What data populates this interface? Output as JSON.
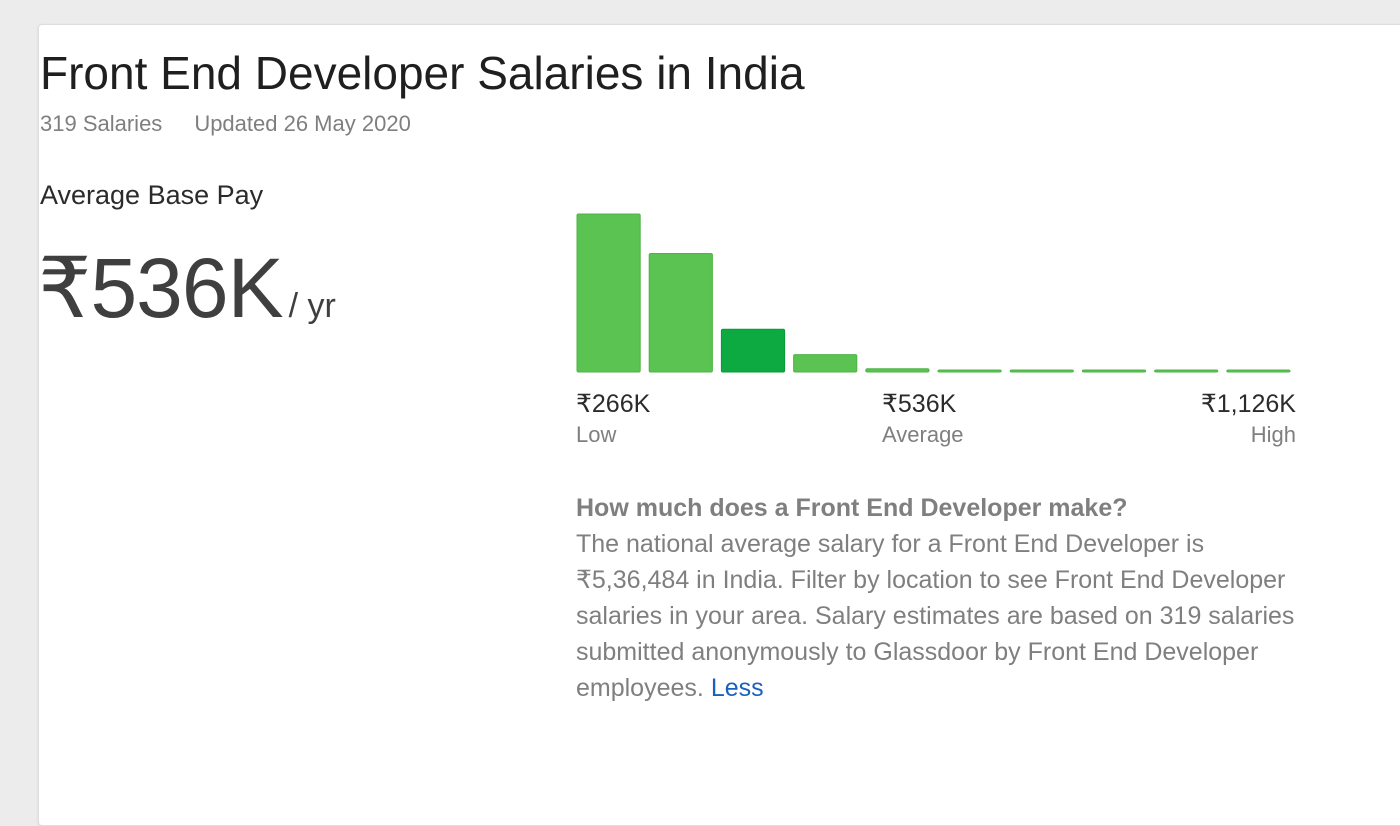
{
  "header": {
    "title": "Front End Developer Salaries in India",
    "salaries_count": "319 Salaries",
    "updated": "Updated 26 May 2020"
  },
  "summary": {
    "label": "Average Base Pay",
    "value": "₹536K",
    "unit": "/ yr"
  },
  "chart_data": {
    "type": "bar",
    "values": [
      100,
      75,
      27,
      11,
      2,
      1,
      1,
      1,
      1,
      1
    ],
    "highlight_index": 2,
    "colors": {
      "bar": "#5ac352",
      "highlight": "#0caa41"
    },
    "labels": {
      "low": {
        "value": "₹266K",
        "name": "Low"
      },
      "average": {
        "value": "₹536K",
        "name": "Average"
      },
      "high": {
        "value": "₹1,126K",
        "name": "High"
      }
    }
  },
  "description": {
    "question": "How much does a Front End Developer make?",
    "body": "The national average salary for a Front End Developer is ₹5,36,484 in India. Filter by location to see Front End Developer salaries in your area. Salary estimates are based on 319 salaries submitted anonymously to Glassdoor by Front End Developer employees.",
    "toggle_label": "Less"
  }
}
